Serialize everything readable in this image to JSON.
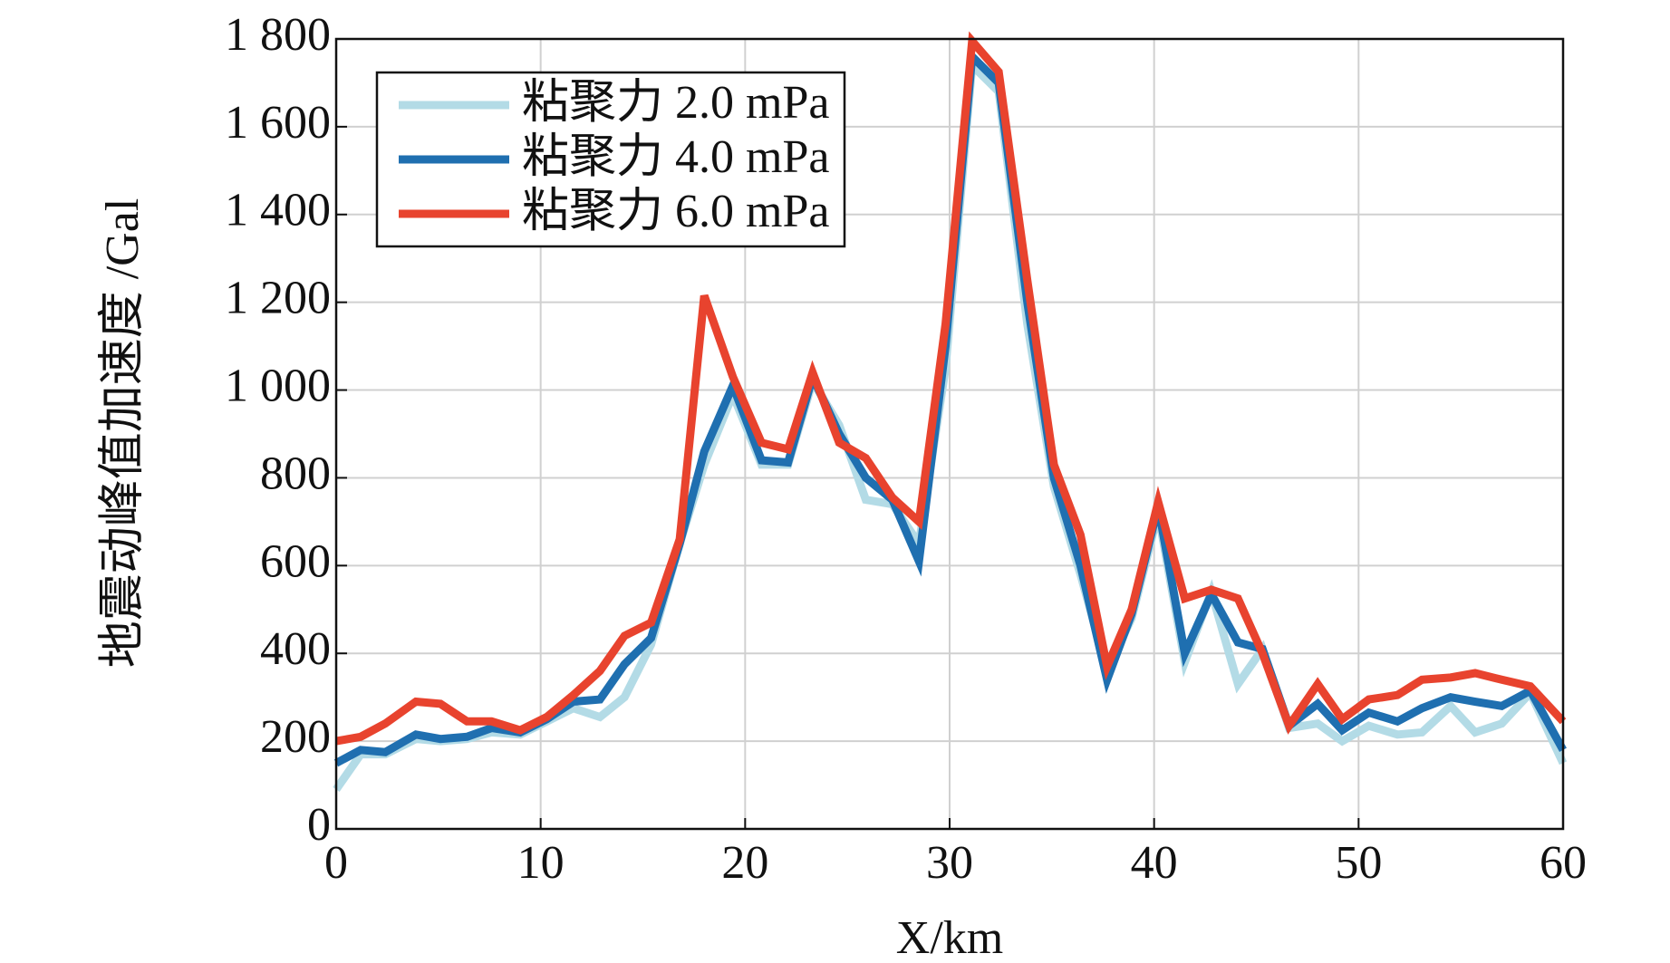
{
  "chart_data": {
    "type": "line",
    "xlabel": "X/km",
    "ylabel": "地震动峰值加速度 /Gal",
    "x": [
      0,
      1.2,
      2.4,
      3.9,
      5.1,
      6.4,
      7.6,
      9.0,
      10.3,
      11.6,
      12.9,
      14.1,
      15.4,
      16.8,
      18.0,
      19.4,
      20.8,
      22.1,
      23.3,
      24.6,
      25.9,
      27.2,
      28.5,
      29.8,
      31.1,
      32.4,
      33.8,
      35.1,
      36.4,
      37.7,
      38.9,
      40.2,
      41.5,
      42.8,
      44.1,
      45.3,
      46.6,
      48.0,
      49.2,
      50.5,
      51.9,
      53.1,
      54.5,
      55.7,
      57.0,
      58.4,
      60
    ],
    "series": [
      {
        "name": "粘聚力 2.0 mPa",
        "color": "#b3dbe6",
        "values": [
          90,
          170,
          170,
          205,
          200,
          205,
          220,
          215,
          245,
          275,
          255,
          300,
          420,
          650,
          830,
          990,
          830,
          830,
          1020,
          920,
          750,
          740,
          650,
          1050,
          1740,
          1680,
          1150,
          780,
          580,
          360,
          480,
          720,
          380,
          540,
          330,
          410,
          230,
          240,
          200,
          235,
          215,
          220,
          280,
          220,
          240,
          310,
          150
        ]
      },
      {
        "name": "粘聚力 4.0 mPa",
        "color": "#1f6fb0",
        "values": [
          150,
          180,
          175,
          215,
          205,
          210,
          230,
          220,
          250,
          290,
          295,
          375,
          435,
          650,
          860,
          1010,
          840,
          835,
          1030,
          900,
          800,
          750,
          610,
          1100,
          1760,
          1700,
          1200,
          800,
          600,
          340,
          490,
          735,
          400,
          535,
          425,
          410,
          235,
          285,
          225,
          265,
          245,
          275,
          300,
          290,
          280,
          315,
          180
        ]
      },
      {
        "name": "粘聚力 6.0 mPa",
        "color": "#e8432e",
        "values": [
          200,
          210,
          240,
          290,
          285,
          245,
          245,
          225,
          255,
          305,
          360,
          440,
          470,
          660,
          1215,
          1030,
          880,
          865,
          1040,
          880,
          845,
          755,
          700,
          1150,
          1795,
          1725,
          1250,
          830,
          670,
          370,
          500,
          745,
          525,
          545,
          525,
          400,
          235,
          330,
          250,
          295,
          305,
          340,
          345,
          355,
          340,
          325,
          245
        ]
      }
    ],
    "xlim": [
      0,
      60
    ],
    "xticks": [
      0,
      10,
      20,
      30,
      40,
      50,
      60
    ],
    "ylim": [
      0,
      1800
    ],
    "yticks": [
      0,
      200,
      400,
      600,
      800,
      {
        "value": 1000,
        "label": "1 000"
      },
      {
        "value": 1200,
        "label": "1 200"
      },
      {
        "value": 1400,
        "label": "1 400"
      },
      {
        "value": 1600,
        "label": "1 600"
      },
      {
        "value": 1800,
        "label": "1 800"
      }
    ],
    "grid": true,
    "legend": "upper left"
  }
}
